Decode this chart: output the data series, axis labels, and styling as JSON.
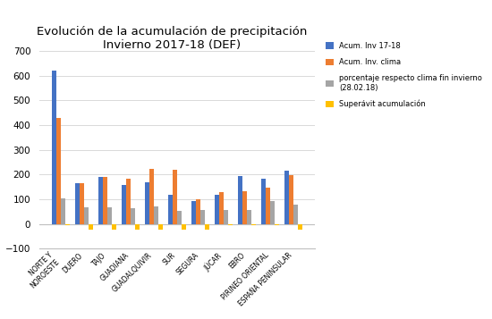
{
  "title": "Evolución de la acumulación de precipitación\nInvierno 2017-18 (DEF)",
  "categories": [
    "NORTE Y\nNOROESTE",
    "DUERO",
    "TAJO",
    "GUADIANA",
    "GUADALQUIVIR",
    "SUR",
    "SEGURA",
    "JÚCAR",
    "EBRO",
    "PIRINEO ORIENTAL",
    "ESPAÑA PENINSULAR"
  ],
  "acum_inv": [
    620,
    167,
    192,
    158,
    170,
    120,
    93,
    118,
    193,
    185,
    215
  ],
  "acum_clima": [
    430,
    167,
    192,
    183,
    225,
    218,
    100,
    128,
    133,
    148,
    198
  ],
  "porcentaje": [
    104,
    68,
    68,
    64,
    70,
    54,
    57,
    57,
    57,
    92,
    80
  ],
  "superavit": [
    -5,
    -22,
    -22,
    -22,
    -22,
    -22,
    -22,
    -5,
    -5,
    -5,
    -22
  ],
  "colors": {
    "acum_inv": "#4472C4",
    "acum_clima": "#ED7D31",
    "porcentaje": "#A5A5A5",
    "superavit": "#FFC000"
  },
  "ylim": [
    -100,
    700
  ],
  "yticks": [
    -100,
    0,
    100,
    200,
    300,
    400,
    500,
    600,
    700
  ],
  "background": "#FFFFFF",
  "legend_labels": [
    "Acum. Inv 17-18",
    "Acum. Inv. clima",
    "porcentaje respecto clima fin invierno\n(28.02.18)",
    "Superávit acumulación"
  ]
}
